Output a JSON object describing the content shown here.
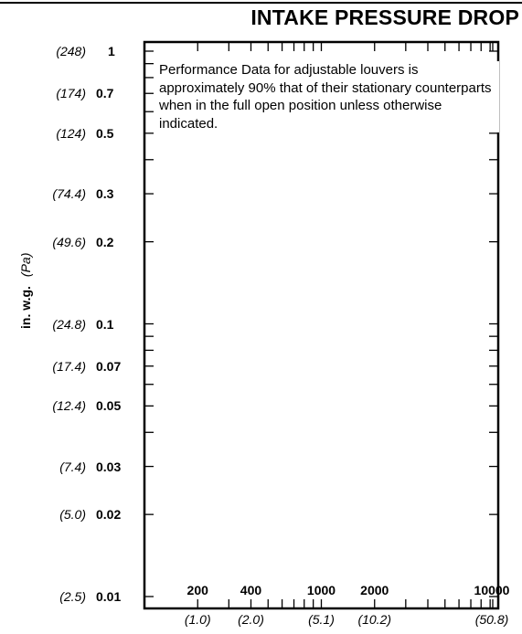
{
  "chart_data": {
    "type": "line",
    "title": "INTAKE PRESSURE DROP",
    "ylabel": "in. w.g.",
    "ylabel_secondary": "(Pa)",
    "yscale": "log",
    "xscale": "log",
    "ylim": [
      0.01,
      1
    ],
    "xlim": [
      100,
      10000
    ],
    "y_ticks": [
      {
        "value": 1,
        "label": "1",
        "pa": "(248)"
      },
      {
        "value": 0.7,
        "label": "0.7",
        "pa": "(174)"
      },
      {
        "value": 0.5,
        "label": "0.5",
        "pa": "(124)"
      },
      {
        "value": 0.3,
        "label": "0.3",
        "pa": "(74.4)"
      },
      {
        "value": 0.2,
        "label": "0.2",
        "pa": "(49.6)"
      },
      {
        "value": 0.1,
        "label": "0.1",
        "pa": "(24.8)"
      },
      {
        "value": 0.07,
        "label": "0.07",
        "pa": "(17.4)"
      },
      {
        "value": 0.05,
        "label": "0.05",
        "pa": "(12.4)"
      },
      {
        "value": 0.03,
        "label": "0.03",
        "pa": "(7.4)"
      },
      {
        "value": 0.02,
        "label": "0.02",
        "pa": "(5.0)"
      },
      {
        "value": 0.01,
        "label": "0.01",
        "pa": "(2.5)"
      }
    ],
    "y_minor_ticks": [
      0.9,
      0.8,
      0.6,
      0.4,
      0.09,
      0.08,
      0.06,
      0.04
    ],
    "x_ticks": [
      {
        "value": 200,
        "label": "200",
        "ms": "(1.0)"
      },
      {
        "value": 400,
        "label": "400",
        "ms": "(2.0)"
      },
      {
        "value": 1000,
        "label": "1000",
        "ms": "(5.1)"
      },
      {
        "value": 2000,
        "label": "2000",
        "ms": "(10.2)"
      },
      {
        "value": 10000,
        "label": "10000",
        "ms": "(50.8)"
      }
    ],
    "x_minor_ticks": [
      300,
      500,
      600,
      700,
      800,
      900,
      3000,
      4000,
      5000,
      6000,
      7000,
      8000,
      9000
    ],
    "annotation": "Performance Data for adjustable louvers is approximately 90% that of their stationary counterparts when in the full open position unless otherwise indicated.",
    "series": [],
    "grid": false
  }
}
